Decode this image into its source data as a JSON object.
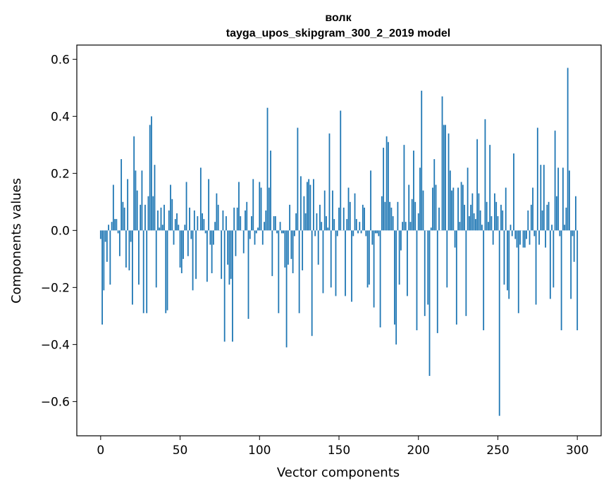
{
  "chart_data": {
    "type": "bar",
    "title": "волк",
    "subtitle": "tayga_upos_skipgram_300_2_2019 model",
    "xlabel": "Vector components",
    "ylabel": "Components values",
    "xlim": [
      -15,
      315
    ],
    "ylim": [
      -0.72,
      0.65
    ],
    "xticks": [
      0,
      50,
      100,
      150,
      200,
      250,
      300
    ],
    "xtick_labels": [
      "0",
      "50",
      "100",
      "150",
      "200",
      "250",
      "300"
    ],
    "yticks": [
      -0.6,
      -0.4,
      -0.2,
      0.0,
      0.2,
      0.4,
      0.6
    ],
    "ytick_labels": [
      "−0.6",
      "−0.4",
      "−0.2",
      "0.0",
      "0.2",
      "0.4",
      "0.6"
    ],
    "bar_color": "#1f77b4",
    "values": [
      -0.03,
      -0.33,
      -0.21,
      -0.04,
      -0.11,
      0.02,
      -0.19,
      0.03,
      0.16,
      0.04,
      0.04,
      -0.01,
      -0.09,
      0.25,
      0.1,
      0.08,
      -0.13,
      0.18,
      -0.14,
      -0.04,
      -0.26,
      0.33,
      0.21,
      0.14,
      -0.19,
      0.09,
      0.21,
      -0.29,
      0.09,
      -0.29,
      0.12,
      0.37,
      0.4,
      0.12,
      0.23,
      -0.2,
      0.07,
      0.01,
      0.08,
      0.02,
      0.09,
      -0.29,
      -0.28,
      0.07,
      0.16,
      0.11,
      -0.05,
      0.04,
      0.06,
      0.02,
      -0.13,
      -0.15,
      -0.1,
      0.02,
      0.17,
      -0.09,
      0.08,
      -0.03,
      -0.21,
      0.07,
      -0.17,
      0.05,
      0.0,
      0.22,
      0.06,
      0.04,
      -0.01,
      -0.18,
      0.18,
      -0.05,
      -0.15,
      -0.05,
      0.03,
      0.13,
      0.09,
      0.0,
      -0.17,
      0.07,
      -0.39,
      0.05,
      -0.12,
      -0.19,
      -0.17,
      -0.39,
      0.08,
      -0.09,
      0.08,
      0.17,
      0.05,
      0.0,
      -0.08,
      0.07,
      0.1,
      -0.31,
      -0.03,
      0.05,
      0.18,
      -0.05,
      -0.01,
      0.01,
      0.17,
      0.15,
      -0.05,
      0.03,
      0.07,
      0.43,
      0.15,
      0.28,
      -0.16,
      0.05,
      0.05,
      -0.01,
      -0.29,
      0.03,
      -0.01,
      -0.01,
      -0.13,
      -0.41,
      -0.12,
      0.09,
      -0.1,
      -0.15,
      -0.02,
      0.06,
      0.36,
      -0.29,
      0.19,
      -0.14,
      0.12,
      0.06,
      0.17,
      0.18,
      0.16,
      -0.37,
      0.18,
      -0.02,
      0.06,
      -0.12,
      0.09,
      0.03,
      -0.22,
      0.14,
      0.05,
      0.01,
      0.34,
      -0.2,
      0.14,
      0.04,
      -0.23,
      -0.02,
      0.08,
      0.42,
      0.0,
      0.08,
      -0.23,
      0.04,
      0.15,
      0.1,
      -0.25,
      -0.02,
      0.13,
      0.04,
      -0.01,
      0.03,
      -0.01,
      0.09,
      0.08,
      -0.02,
      -0.2,
      -0.19,
      0.21,
      -0.05,
      -0.27,
      -0.01,
      -0.01,
      -0.02,
      -0.34,
      0.12,
      0.29,
      0.1,
      0.33,
      0.31,
      0.1,
      0.08,
      0.05,
      -0.33,
      -0.4,
      0.1,
      -0.19,
      -0.07,
      0.03,
      0.3,
      0.03,
      -0.23,
      0.16,
      0.03,
      0.11,
      0.28,
      0.1,
      -0.35,
      0.06,
      0.22,
      0.49,
      0.14,
      -0.3,
      0.0,
      -0.26,
      -0.51,
      0.01,
      0.15,
      0.25,
      0.16,
      -0.36,
      0.08,
      0.0,
      0.47,
      0.37,
      0.37,
      -0.2,
      0.34,
      0.21,
      0.14,
      0.15,
      -0.06,
      -0.33,
      0.15,
      0.03,
      0.17,
      0.16,
      0.09,
      -0.3,
      0.22,
      0.05,
      0.09,
      0.13,
      0.06,
      0.04,
      0.32,
      0.13,
      0.07,
      0.02,
      -0.35,
      0.39,
      0.1,
      0.03,
      0.3,
      0.05,
      -0.05,
      0.13,
      0.1,
      0.05,
      -0.65,
      0.09,
      0.07,
      -0.19,
      0.15,
      -0.21,
      -0.24,
      0.02,
      -0.02,
      0.27,
      -0.03,
      -0.06,
      -0.29,
      -0.05,
      0.0,
      -0.06,
      -0.06,
      -0.03,
      0.07,
      -0.05,
      0.09,
      0.15,
      -0.02,
      -0.26,
      0.36,
      -0.05,
      0.23,
      0.07,
      0.23,
      -0.06,
      0.09,
      0.1,
      -0.24,
      0.02,
      -0.2,
      0.35,
      0.12,
      0.22,
      -0.02,
      -0.35,
      0.22,
      0.02,
      0.08,
      0.57,
      0.21,
      -0.24,
      -0.02,
      -0.11,
      0.12,
      -0.35
    ]
  }
}
